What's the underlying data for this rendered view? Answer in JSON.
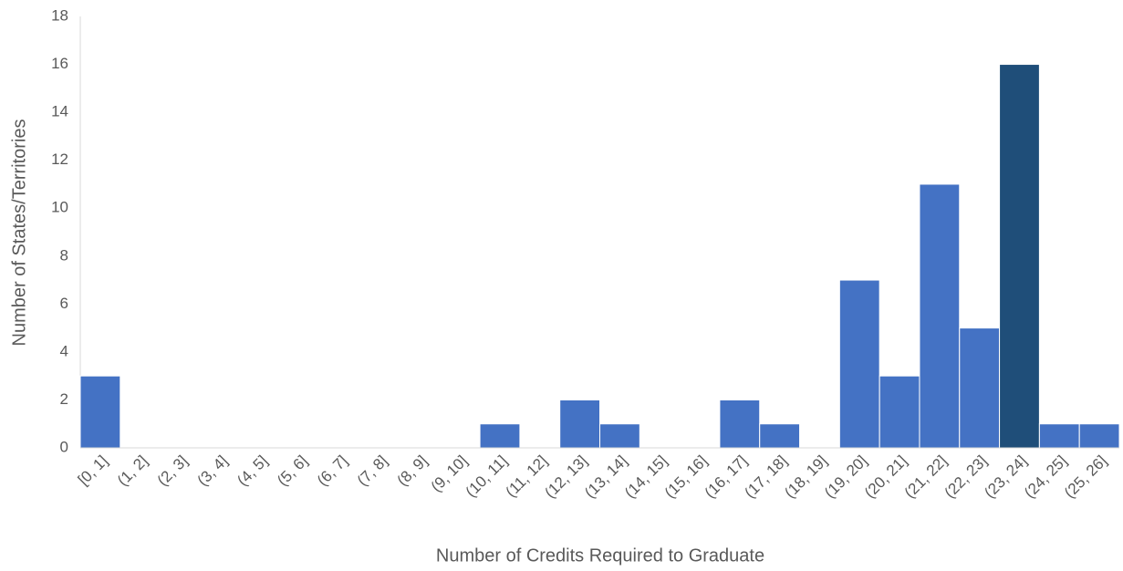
{
  "chart_data": {
    "type": "bar",
    "x_label": "Number of Credits Required to Graduate",
    "y_label": "Number of States/Territories",
    "categories": [
      "[0, 1]",
      "(1, 2]",
      "(2, 3]",
      "(3, 4]",
      "(4, 5]",
      "(5, 6]",
      "(6, 7]",
      "(7, 8]",
      "(8, 9]",
      "(9, 10]",
      "(10, 11]",
      "(11, 12]",
      "(12, 13]",
      "(13, 14]",
      "(14, 15]",
      "(15, 16]",
      "(16, 17]",
      "(17, 18]",
      "(18, 19]",
      "(19, 20]",
      "(20, 21]",
      "(21, 22]",
      "(22, 23]",
      "(23, 24]",
      "(24, 25]",
      "(25, 26]"
    ],
    "values": [
      3,
      0,
      0,
      0,
      0,
      0,
      0,
      0,
      0,
      0,
      1,
      0,
      2,
      1,
      0,
      0,
      2,
      1,
      0,
      7,
      3,
      11,
      5,
      16,
      1,
      1
    ],
    "colors": [
      "#4472c4",
      "#4472c4",
      "#4472c4",
      "#4472c4",
      "#4472c4",
      "#4472c4",
      "#4472c4",
      "#4472c4",
      "#4472c4",
      "#4472c4",
      "#4472c4",
      "#4472c4",
      "#4472c4",
      "#4472c4",
      "#4472c4",
      "#4472c4",
      "#4472c4",
      "#4472c4",
      "#4472c4",
      "#4472c4",
      "#4472c4",
      "#4472c4",
      "#4472c4",
      "#1f4e79",
      "#4472c4",
      "#4472c4"
    ],
    "ylim": [
      0,
      18
    ],
    "yticks": [
      0,
      2,
      4,
      6,
      8,
      10,
      12,
      14,
      16,
      18
    ],
    "grid": false
  }
}
